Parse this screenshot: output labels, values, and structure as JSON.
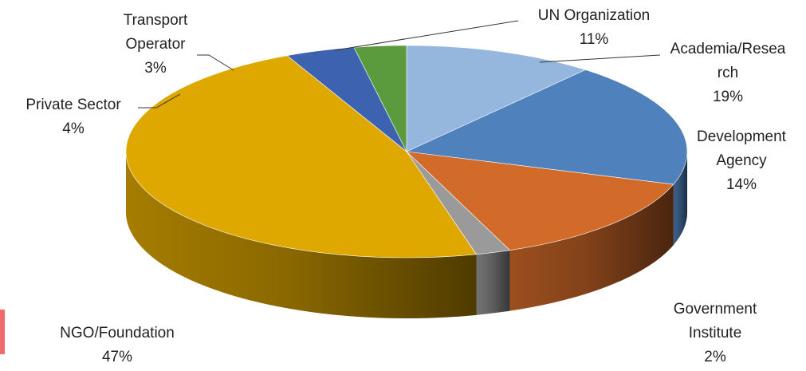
{
  "chart_data": {
    "type": "pie",
    "style": "3d",
    "title": "",
    "slices": [
      {
        "name": "UN Organization",
        "lines": [
          "UN Organization"
        ],
        "value": 11,
        "label": "11%",
        "color": "#95b7dd"
      },
      {
        "name": "Academia/Research",
        "lines": [
          "Academia/Resea",
          "rch"
        ],
        "value": 19,
        "label": "19%",
        "color": "#4f81bd"
      },
      {
        "name": "Development Agency",
        "lines": [
          "Development",
          "Agency"
        ],
        "value": 14,
        "label": "14%",
        "color": "#d26b29"
      },
      {
        "name": "Government Institute",
        "lines": [
          "Government",
          "Institute"
        ],
        "value": 2,
        "label": "2%",
        "color": "#9a9a9a"
      },
      {
        "name": "NGO/Foundation",
        "lines": [
          "NGO/Foundation"
        ],
        "value": 47,
        "label": "47%",
        "color": "#dfa800"
      },
      {
        "name": "Private Sector",
        "lines": [
          "Private Sector"
        ],
        "value": 4,
        "label": "4%",
        "color": "#3d63b0"
      },
      {
        "name": "Transport Operator",
        "lines": [
          "Transport",
          "Operator"
        ],
        "value": 3,
        "label": "3%",
        "color": "#5b9b3e"
      }
    ]
  }
}
